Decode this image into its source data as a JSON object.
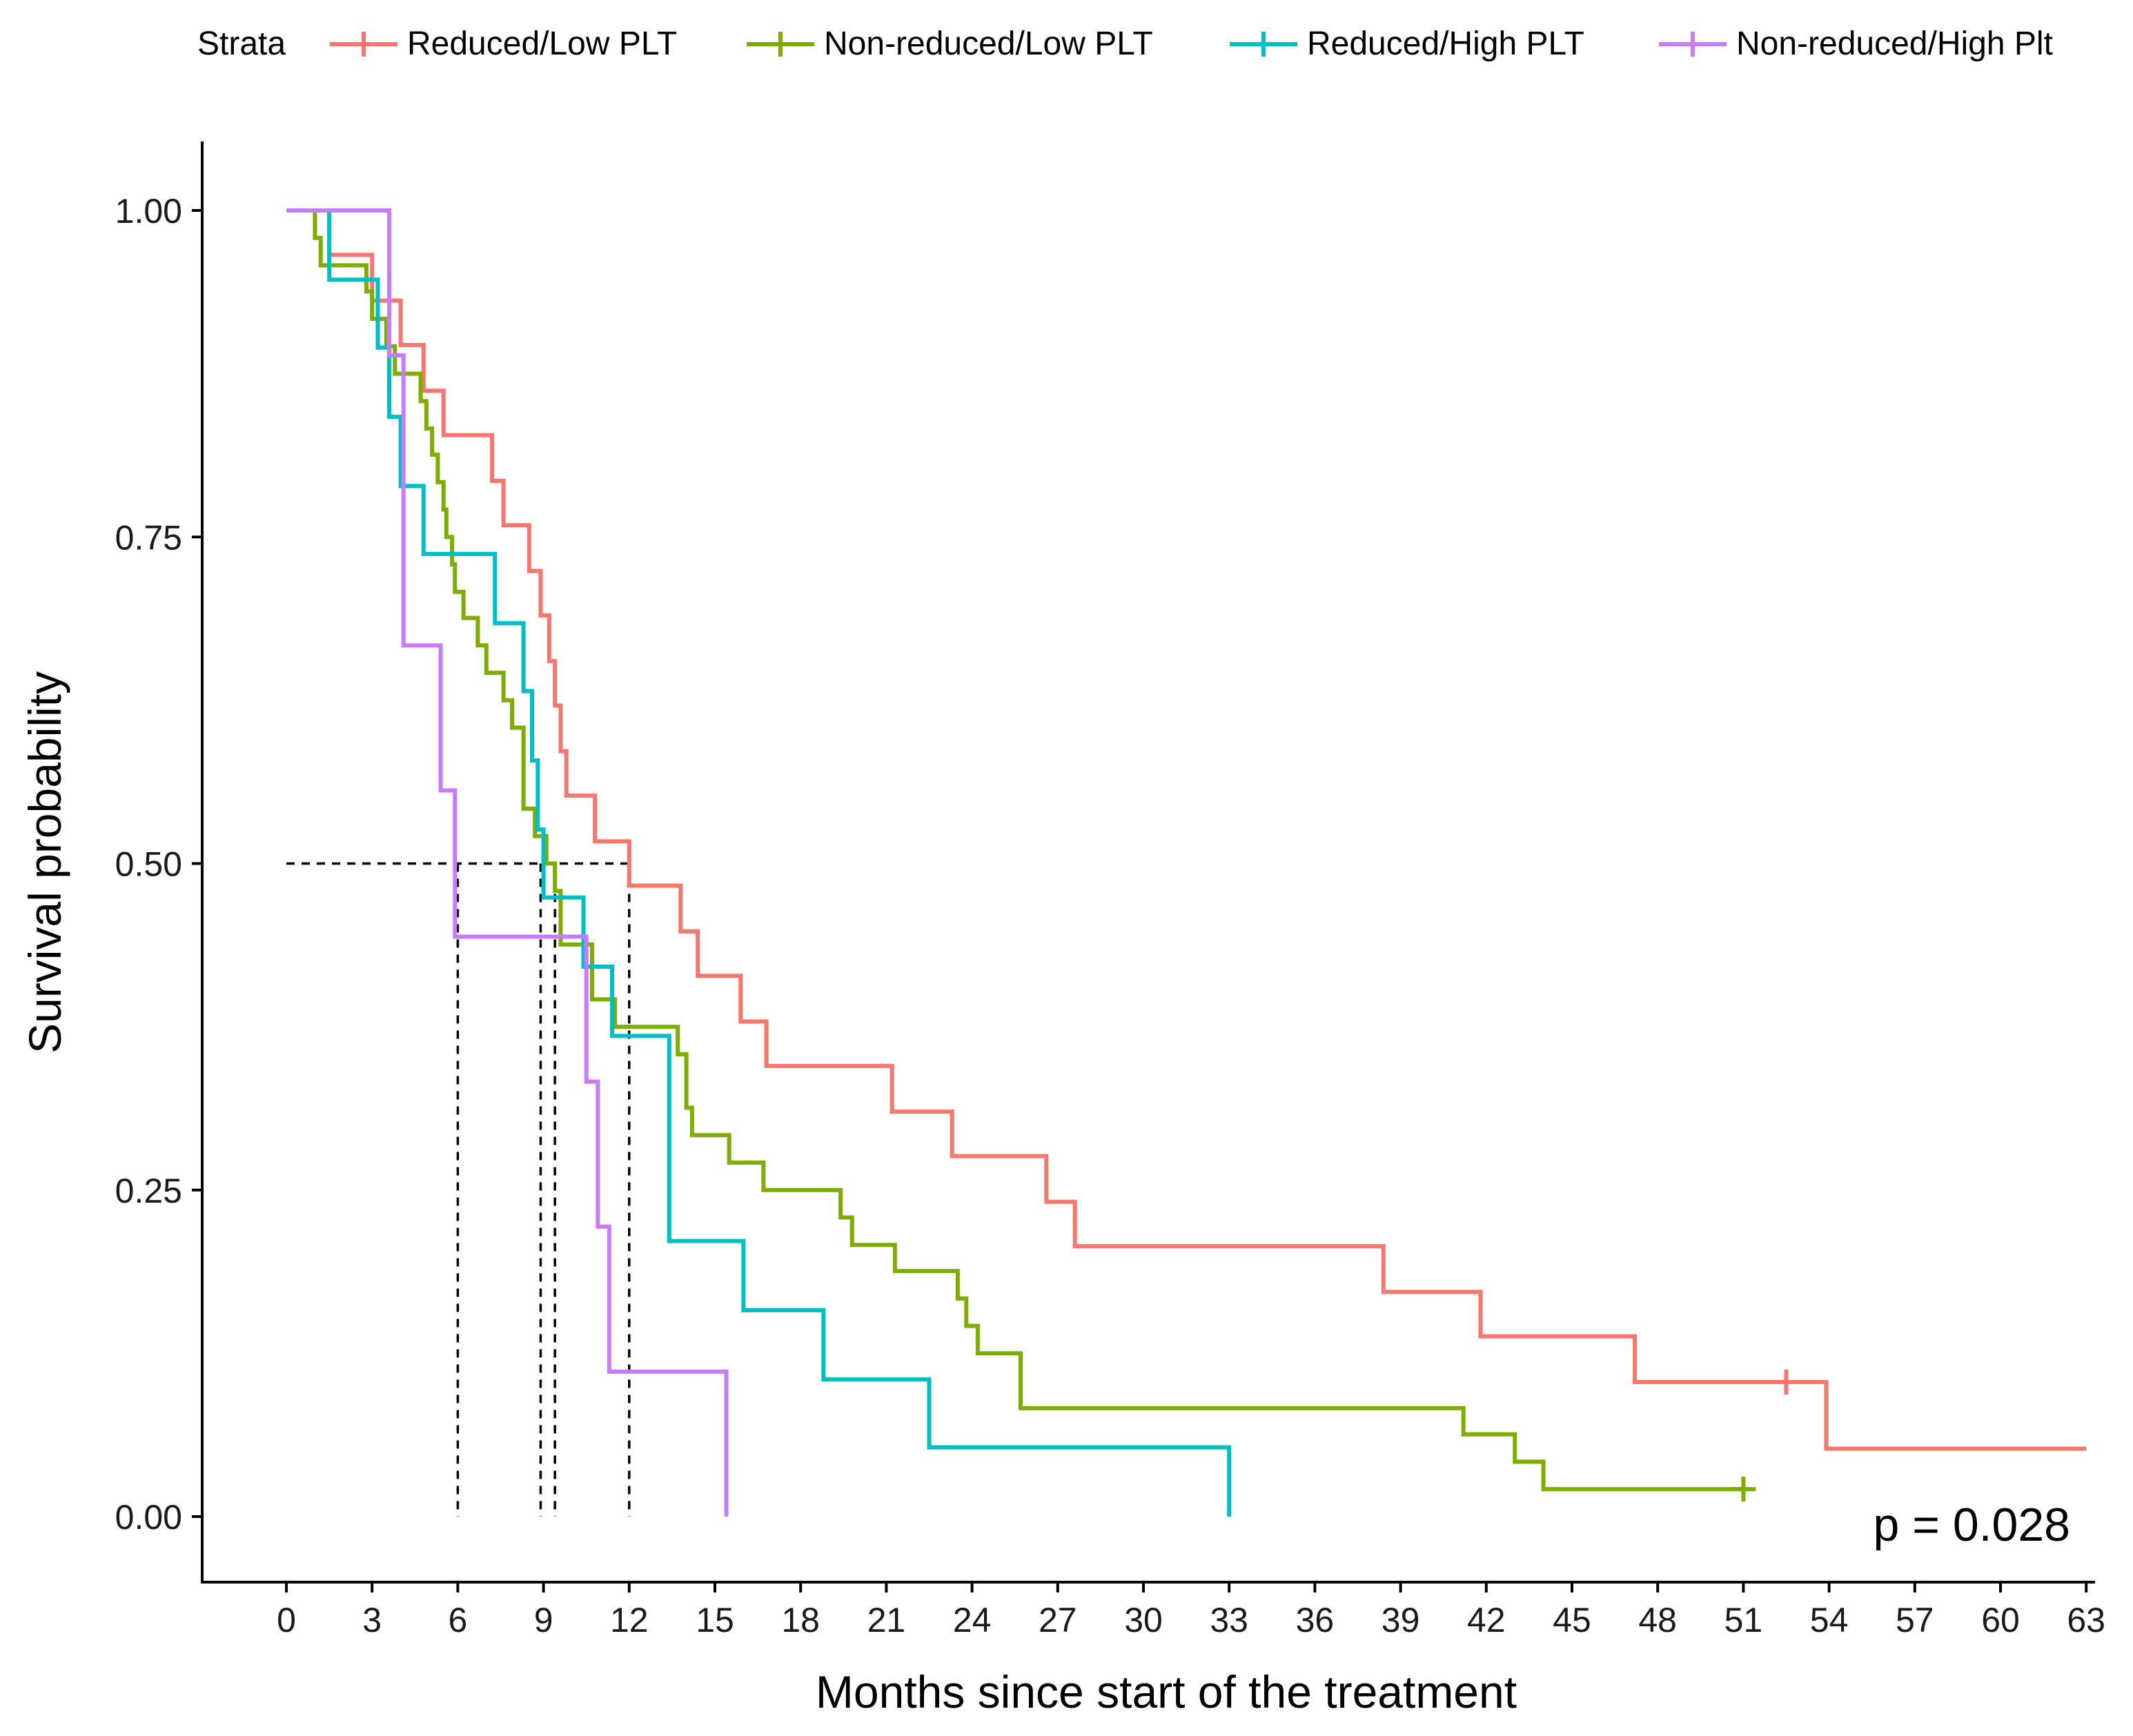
{
  "chart_data": {
    "type": "line",
    "subtype": "kaplan-meier step",
    "xlabel": "Months since start of the treatment",
    "ylabel": "Survival probability",
    "xlim": [
      -3,
      63
    ],
    "ylim": [
      -0.05,
      1.05
    ],
    "x_ticks": [
      0,
      3,
      6,
      9,
      12,
      15,
      18,
      21,
      24,
      27,
      30,
      33,
      36,
      39,
      42,
      45,
      48,
      51,
      54,
      57,
      60,
      63
    ],
    "y_ticks": [
      0,
      0.25,
      0.5,
      0.75,
      1.0
    ],
    "y_tick_labels": [
      "0.00",
      "0.25",
      "0.50",
      "0.75",
      "1.00"
    ],
    "legend": {
      "title": "Strata",
      "position": "top"
    },
    "pvalue": "p = 0.028",
    "series": [
      {
        "name": "Reduced/Low PLT",
        "color": "#F8766D",
        "points": [
          [
            0,
            1.0
          ],
          [
            1.5,
            0.966
          ],
          [
            3,
            0.931
          ],
          [
            4,
            0.897
          ],
          [
            4.8,
            0.862
          ],
          [
            5.5,
            0.828
          ],
          [
            7.2,
            0.793
          ],
          [
            7.6,
            0.759
          ],
          [
            8.5,
            0.724
          ],
          [
            8.9,
            0.69
          ],
          [
            9.2,
            0.655
          ],
          [
            9.4,
            0.621
          ],
          [
            9.6,
            0.586
          ],
          [
            9.8,
            0.552
          ],
          [
            10.8,
            0.517
          ],
          [
            12.0,
            0.483
          ],
          [
            13.8,
            0.448
          ],
          [
            14.4,
            0.414
          ],
          [
            15.9,
            0.379
          ],
          [
            16.8,
            0.345
          ],
          [
            21.2,
            0.31
          ],
          [
            23.3,
            0.276
          ],
          [
            26.6,
            0.241
          ],
          [
            27.6,
            0.207
          ],
          [
            38.4,
            0.172
          ],
          [
            41.8,
            0.138
          ],
          [
            47.2,
            0.103
          ],
          [
            53.9,
            0.052
          ],
          [
            63.0,
            0.052
          ]
        ],
        "censored": [
          [
            52.5,
            0.103
          ]
        ]
      },
      {
        "name": "Non-reduced/Low PLT",
        "color": "#7CAE00",
        "points": [
          [
            0,
            1.0
          ],
          [
            1.0,
            0.979
          ],
          [
            1.2,
            0.958
          ],
          [
            2.8,
            0.938
          ],
          [
            3.0,
            0.917
          ],
          [
            3.5,
            0.896
          ],
          [
            3.8,
            0.875
          ],
          [
            4.7,
            0.854
          ],
          [
            4.9,
            0.833
          ],
          [
            5.1,
            0.813
          ],
          [
            5.3,
            0.792
          ],
          [
            5.5,
            0.771
          ],
          [
            5.6,
            0.75
          ],
          [
            5.8,
            0.729
          ],
          [
            5.9,
            0.708
          ],
          [
            6.2,
            0.688
          ],
          [
            6.7,
            0.667
          ],
          [
            7.0,
            0.646
          ],
          [
            7.6,
            0.625
          ],
          [
            7.9,
            0.604
          ],
          [
            8.3,
            0.542
          ],
          [
            8.7,
            0.521
          ],
          [
            9.1,
            0.5
          ],
          [
            9.4,
            0.479
          ],
          [
            9.6,
            0.438
          ],
          [
            10.7,
            0.396
          ],
          [
            11.5,
            0.375
          ],
          [
            13.7,
            0.354
          ],
          [
            14.0,
            0.313
          ],
          [
            14.2,
            0.292
          ],
          [
            15.5,
            0.271
          ],
          [
            16.7,
            0.25
          ],
          [
            19.4,
            0.229
          ],
          [
            19.8,
            0.208
          ],
          [
            21.3,
            0.188
          ],
          [
            23.5,
            0.167
          ],
          [
            23.8,
            0.146
          ],
          [
            24.2,
            0.125
          ],
          [
            25.7,
            0.083
          ],
          [
            41.2,
            0.063
          ],
          [
            43.0,
            0.042
          ],
          [
            44.0,
            0.021
          ],
          [
            51.0,
            0.021
          ]
        ],
        "censored": [
          [
            51.0,
            0.021
          ]
        ]
      },
      {
        "name": "Reduced/High PLT",
        "color": "#00BFC4",
        "points": [
          [
            0,
            1.0
          ],
          [
            1.5,
            0.947
          ],
          [
            3.2,
            0.895
          ],
          [
            3.6,
            0.842
          ],
          [
            4.0,
            0.789
          ],
          [
            4.8,
            0.737
          ],
          [
            7.3,
            0.684
          ],
          [
            8.3,
            0.632
          ],
          [
            8.6,
            0.579
          ],
          [
            8.8,
            0.526
          ],
          [
            9.0,
            0.474
          ],
          [
            10.4,
            0.421
          ],
          [
            11.4,
            0.368
          ],
          [
            13.4,
            0.211
          ],
          [
            16.0,
            0.158
          ],
          [
            18.8,
            0.105
          ],
          [
            22.5,
            0.053
          ],
          [
            33.0,
            0.053
          ],
          [
            33.0,
            0.0
          ]
        ],
        "censored": []
      },
      {
        "name": "Non-reduced/High Plt",
        "color": "#C77CFF",
        "points": [
          [
            0,
            1.0
          ],
          [
            3.6,
            0.889
          ],
          [
            4.1,
            0.667
          ],
          [
            5.4,
            0.556
          ],
          [
            5.9,
            0.444
          ],
          [
            10.5,
            0.333
          ],
          [
            10.9,
            0.222
          ],
          [
            11.3,
            0.111
          ],
          [
            15.4,
            0.111
          ],
          [
            15.4,
            0.0
          ]
        ],
        "censored": []
      }
    ],
    "median_lines": [
      {
        "x": 6.0
      },
      {
        "x": 8.9
      },
      {
        "x": 9.4
      },
      {
        "x": 12.0
      }
    ],
    "median_y": 0.5
  }
}
